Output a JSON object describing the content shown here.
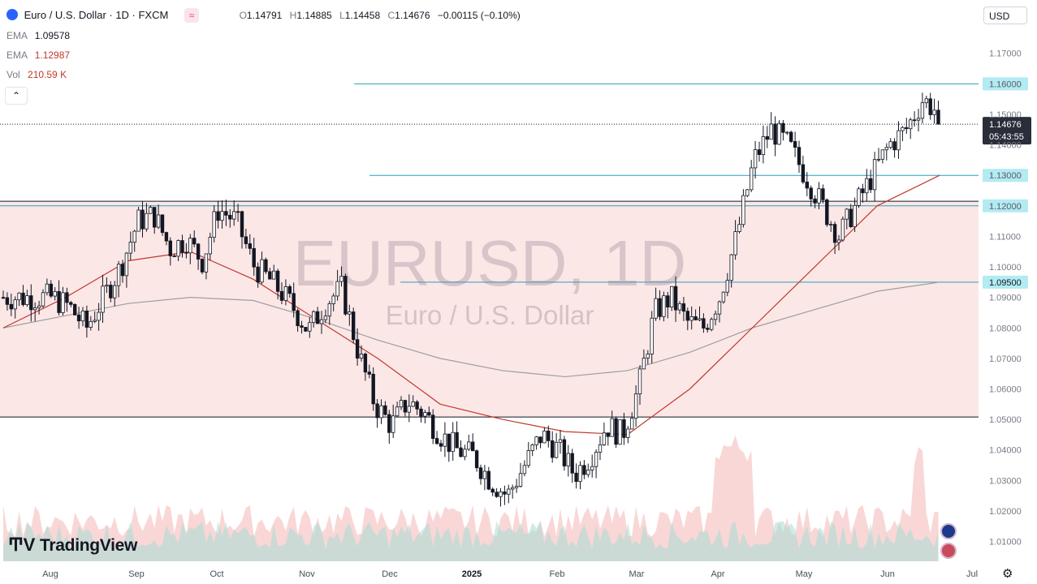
{
  "header": {
    "symbol": "Euro / U.S. Dollar · 1D · FXCM",
    "approx_icon": "≈",
    "open_label": "O",
    "open": "1.14791",
    "high_label": "H",
    "high": "1.14885",
    "low_label": "L",
    "low": "1.14458",
    "close_label": "C",
    "close": "1.14676",
    "change": "−0.00115 (−0.10%)"
  },
  "indicators": [
    {
      "label": "EMA",
      "value": "1.09578",
      "color": "#131722"
    },
    {
      "label": "EMA",
      "value": "1.12987",
      "color": "#c0392b"
    },
    {
      "label": "Vol",
      "value": "210.59 K",
      "color": "#c0392b"
    }
  ],
  "currency_button": "USD",
  "logo_text": "TradingView",
  "watermark": {
    "title": "EURUSD, 1D",
    "subtitle": "Euro / U.S. Dollar"
  },
  "icons": {
    "collapse": "chevron-up-icon",
    "settings": "gear-icon",
    "symbol": "flag-icon"
  },
  "colors": {
    "up": "#26a69a",
    "down": "#ef5350",
    "candle": "#131722",
    "level_line": "#26a0b8",
    "level_tag": "#b2ebf2",
    "ema_fast": "#c0392b",
    "ema_slow": "#9e9e9e",
    "zone_fill": "#fce7e7"
  },
  "chart_data": {
    "type": "candlestick",
    "title": "EURUSD, 1D",
    "subtitle": "Euro / U.S. Dollar",
    "x_ticks": [
      "Aug",
      "Sep",
      "Oct",
      "Nov",
      "Dec",
      "2025",
      "Feb",
      "Mar",
      "Apr",
      "May",
      "Jun",
      "Jul"
    ],
    "y_ticks": [
      "1.17000",
      "1.16000",
      "1.15000",
      "1.14000",
      "1.13000",
      "1.12000",
      "1.11000",
      "1.10000",
      "1.09000",
      "1.08000",
      "1.07000",
      "1.06000",
      "1.05000",
      "1.04000",
      "1.03000",
      "1.02000",
      "1.01000"
    ],
    "ylim": [
      1.0035,
      1.1795
    ],
    "last_price": {
      "value": 1.14676,
      "label": "1.14676",
      "countdown": "05:43:55"
    },
    "horizontal_levels": [
      {
        "value": 1.16,
        "label": "1.16000"
      },
      {
        "value": 1.13,
        "label": "1.13000"
      },
      {
        "value": 1.12,
        "label": "1.12000"
      },
      {
        "value": 1.095,
        "label": "1.09500"
      }
    ],
    "zone": {
      "from": 1.0508,
      "to": 1.1215
    },
    "close_path": [
      [
        "Aug",
        1.09
      ],
      [
        "Aug",
        1.087
      ],
      [
        "Aug",
        1.08
      ],
      [
        "Aug",
        1.09
      ],
      [
        "Aug",
        1.1
      ],
      [
        "Sep",
        1.115
      ],
      [
        "Sep",
        1.117
      ],
      [
        "Sep",
        1.106
      ],
      [
        "Sep",
        1.109
      ],
      [
        "Sep",
        1.102
      ],
      [
        "Oct",
        1.119
      ],
      [
        "Oct",
        1.115
      ],
      [
        "Oct",
        1.1
      ],
      [
        "Oct",
        1.095
      ],
      [
        "Oct",
        1.088
      ],
      [
        "Nov",
        1.079
      ],
      [
        "Nov",
        1.088
      ],
      [
        "Nov",
        1.093
      ],
      [
        "Nov",
        1.072
      ],
      [
        "Nov",
        1.055
      ],
      [
        "Dec",
        1.048
      ],
      [
        "Dec",
        1.056
      ],
      [
        "Dec",
        1.052
      ],
      [
        "Dec",
        1.045
      ],
      [
        "Dec",
        1.04
      ],
      [
        "2025",
        1.038
      ],
      [
        "2025",
        1.03
      ],
      [
        "2025",
        1.025
      ],
      [
        "2025",
        1.035
      ],
      [
        "2025",
        1.045
      ],
      [
        "Feb",
        1.04
      ],
      [
        "Feb",
        1.032
      ],
      [
        "Feb",
        1.038
      ],
      [
        "Feb",
        1.048
      ],
      [
        "Feb",
        1.045
      ],
      [
        "Mar",
        1.06
      ],
      [
        "Mar",
        1.085
      ],
      [
        "Mar",
        1.09
      ],
      [
        "Mar",
        1.082
      ],
      [
        "Mar",
        1.08
      ],
      [
        "Apr",
        1.09
      ],
      [
        "Apr",
        1.11
      ],
      [
        "Apr",
        1.135
      ],
      [
        "Apr",
        1.145
      ],
      [
        "Apr",
        1.14
      ],
      [
        "May",
        1.13
      ],
      [
        "May",
        1.12
      ],
      [
        "May",
        1.11
      ],
      [
        "May",
        1.12
      ],
      [
        "May",
        1.13
      ],
      [
        "Jun",
        1.14
      ],
      [
        "Jun",
        1.145
      ],
      [
        "Jun",
        1.155
      ],
      [
        "Jun",
        1.15
      ],
      [
        "Jun",
        1.14676
      ]
    ],
    "ema_fast": [
      1.08,
      1.09,
      1.102,
      1.105,
      1.096,
      1.083,
      1.07,
      1.055,
      1.05,
      1.046,
      1.045,
      1.06,
      1.08,
      1.1,
      1.12,
      1.13
    ],
    "ema_slow": [
      1.08,
      1.084,
      1.088,
      1.09,
      1.089,
      1.083,
      1.076,
      1.07,
      1.066,
      1.064,
      1.066,
      1.072,
      1.08,
      1.086,
      1.092,
      1.095
    ],
    "series": [
      {
        "name": "EMA",
        "values_ref": "ema_fast"
      },
      {
        "name": "EMA",
        "values_ref": "ema_slow"
      },
      {
        "name": "Vol",
        "values_ref": "volume"
      }
    ]
  }
}
